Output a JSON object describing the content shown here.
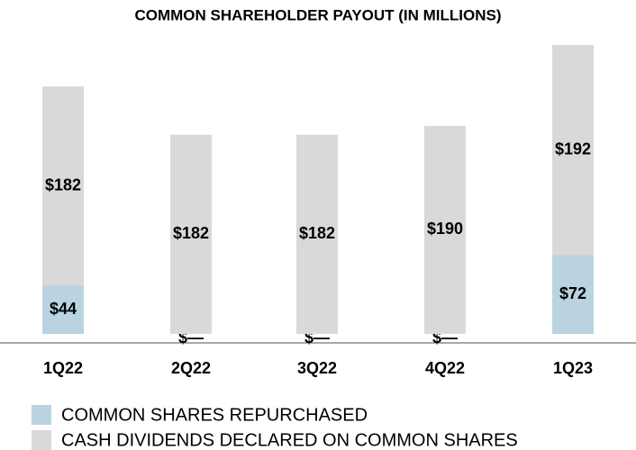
{
  "chart_data": {
    "type": "stacked_bar",
    "title": "COMMON SHAREHOLDER PAYOUT (IN MILLIONS)",
    "categories": [
      "1Q22",
      "2Q22",
      "3Q22",
      "4Q22",
      "1Q23"
    ],
    "series": [
      {
        "name": "COMMON SHARES REPURCHASED",
        "color": "#b9d4e0",
        "values": [
          44,
          0,
          0,
          0,
          72
        ],
        "value_labels": [
          "$44",
          "$—",
          "$—",
          "$—",
          "$72"
        ]
      },
      {
        "name": "CASH DIVIDENDS DECLARED ON COMMON SHARES",
        "color": "#d9d9d9",
        "values": [
          182,
          182,
          182,
          190,
          192
        ],
        "value_labels": [
          "$182",
          "$182",
          "$182",
          "$190",
          "$192"
        ]
      }
    ]
  }
}
